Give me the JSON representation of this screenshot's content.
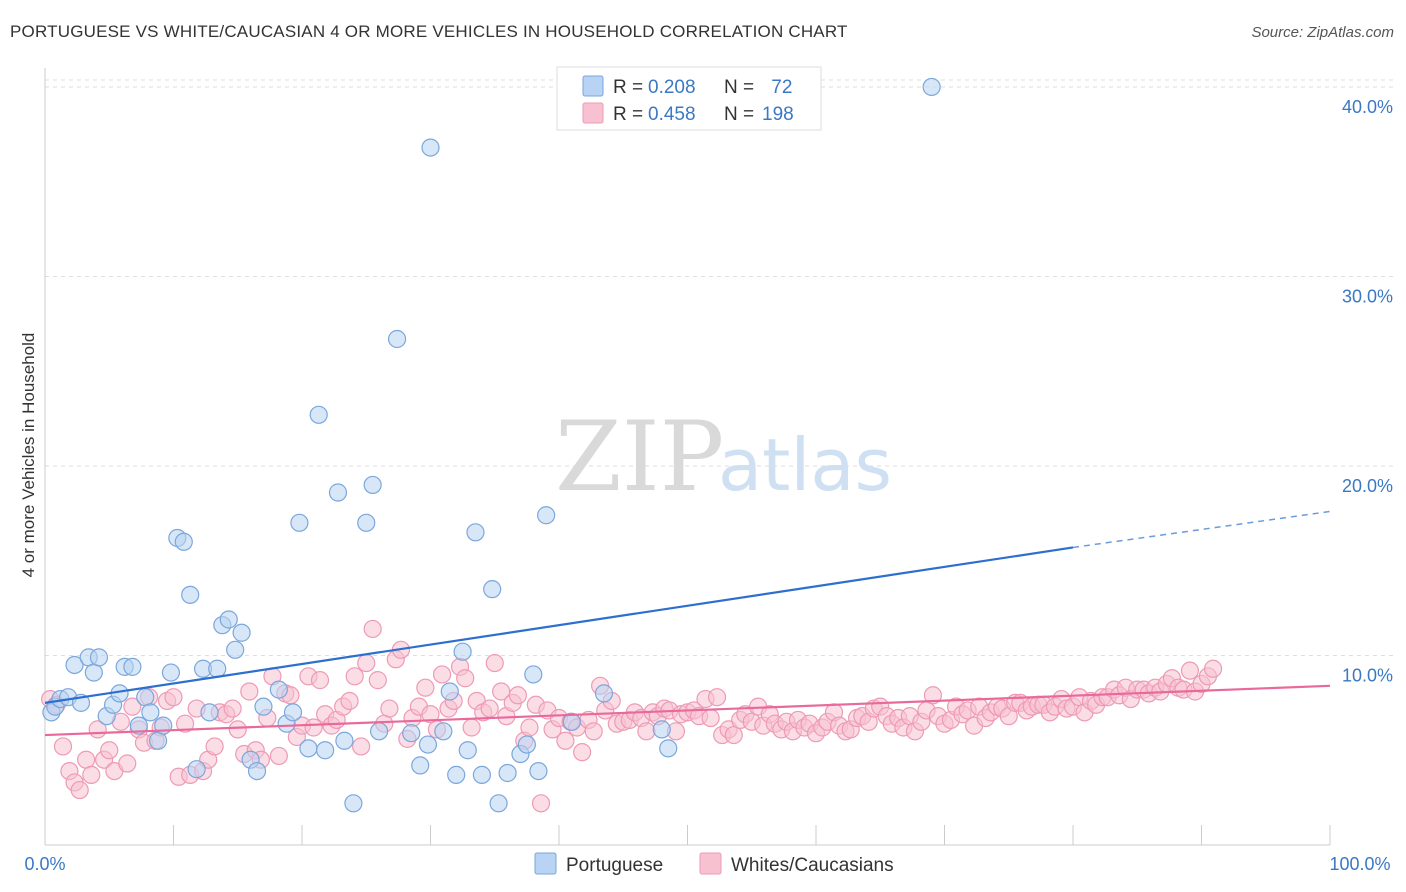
{
  "title": "PORTUGUESE VS WHITE/CAUCASIAN 4 OR MORE VEHICLES IN HOUSEHOLD CORRELATION CHART",
  "source": "Source: ZipAtlas.com",
  "watermark": {
    "zip": "ZIP",
    "atlas": "atlas"
  },
  "colors": {
    "blue_fill": "#b8d3f3",
    "blue_stroke": "#7aa7dc",
    "blue_line": "#2d6fcf",
    "pink_fill": "#f7c1d2",
    "pink_stroke": "#ee9ab5",
    "pink_line": "#e8699a",
    "tick_text": "#3b78c4",
    "grid": "#dddddd"
  },
  "legend": {
    "items": [
      {
        "r_label": "R = ",
        "r_value": "0.208",
        "n_label": "N = ",
        "n_value": " 72"
      },
      {
        "r_label": "R = ",
        "r_value": "0.458",
        "n_label": "N = ",
        "n_value": "198"
      }
    ]
  },
  "chart_data": {
    "type": "scatter",
    "xlabel": "",
    "ylabel": "4 or more Vehicles in Household",
    "xlim": [
      0,
      100
    ],
    "ylim": [
      0,
      41
    ],
    "x_tick_labels": [
      "0.0%",
      "100.0%"
    ],
    "y_ticks": [
      10,
      20,
      30,
      40
    ],
    "y_tick_labels": [
      "10.0%",
      "20.0%",
      "30.0%",
      "40.0%"
    ],
    "grid": true,
    "legend_position": "top-center",
    "series": [
      {
        "name": "Portuguese",
        "color": "#7aa7dc",
        "trend": {
          "x0": 0,
          "y0": 7.5,
          "x1": 80,
          "y1": 15.7,
          "dash_to_x": 100,
          "dash_to_y": 17.6
        },
        "points": [
          [
            0.5,
            7.0
          ],
          [
            0.8,
            7.3
          ],
          [
            1.2,
            7.7
          ],
          [
            1.8,
            7.8
          ],
          [
            2.3,
            9.5
          ],
          [
            2.8,
            7.5
          ],
          [
            3.4,
            9.9
          ],
          [
            3.8,
            9.1
          ],
          [
            4.2,
            9.9
          ],
          [
            4.8,
            6.8
          ],
          [
            5.3,
            7.4
          ],
          [
            5.8,
            8.0
          ],
          [
            6.2,
            9.4
          ],
          [
            6.8,
            9.4
          ],
          [
            7.3,
            6.3
          ],
          [
            7.8,
            7.8
          ],
          [
            8.2,
            7.0
          ],
          [
            8.8,
            5.5
          ],
          [
            9.2,
            6.3
          ],
          [
            9.8,
            9.1
          ],
          [
            10.3,
            16.2
          ],
          [
            10.8,
            16.0
          ],
          [
            11.3,
            13.2
          ],
          [
            11.8,
            4.0
          ],
          [
            12.3,
            9.3
          ],
          [
            12.8,
            7.0
          ],
          [
            13.4,
            9.3
          ],
          [
            13.8,
            11.6
          ],
          [
            14.3,
            11.9
          ],
          [
            14.8,
            10.3
          ],
          [
            15.3,
            11.2
          ],
          [
            16.0,
            4.5
          ],
          [
            16.5,
            3.9
          ],
          [
            17.0,
            7.3
          ],
          [
            18.2,
            8.2
          ],
          [
            18.8,
            6.4
          ],
          [
            19.3,
            7.0
          ],
          [
            19.8,
            17.0
          ],
          [
            20.5,
            5.1
          ],
          [
            21.3,
            22.7
          ],
          [
            21.8,
            5.0
          ],
          [
            22.8,
            18.6
          ],
          [
            23.3,
            5.5
          ],
          [
            24.0,
            2.2
          ],
          [
            25.0,
            17.0
          ],
          [
            25.5,
            19.0
          ],
          [
            26.0,
            6.0
          ],
          [
            27.4,
            26.7
          ],
          [
            28.5,
            5.9
          ],
          [
            29.2,
            4.2
          ],
          [
            29.8,
            5.3
          ],
          [
            30.0,
            36.8
          ],
          [
            31.0,
            6.0
          ],
          [
            31.5,
            8.1
          ],
          [
            32.0,
            3.7
          ],
          [
            32.5,
            10.2
          ],
          [
            32.9,
            5.0
          ],
          [
            33.5,
            16.5
          ],
          [
            34.0,
            3.7
          ],
          [
            34.8,
            13.5
          ],
          [
            35.3,
            2.2
          ],
          [
            36.0,
            3.8
          ],
          [
            37.0,
            4.8
          ],
          [
            37.5,
            5.3
          ],
          [
            38.0,
            9.0
          ],
          [
            38.4,
            3.9
          ],
          [
            39.0,
            17.4
          ],
          [
            41.0,
            6.5
          ],
          [
            43.5,
            8.0
          ],
          [
            48.0,
            6.1
          ],
          [
            48.5,
            5.1
          ],
          [
            69.0,
            40.0
          ]
        ]
      },
      {
        "name": "Whites/Caucasians",
        "color": "#ee9ab5",
        "trend": {
          "x0": 0,
          "y0": 5.8,
          "x1": 100,
          "y1": 8.4
        },
        "points": [
          [
            0.4,
            7.7
          ],
          [
            0.9,
            7.4
          ],
          [
            1.4,
            5.2
          ],
          [
            1.9,
            3.9
          ],
          [
            2.3,
            3.3
          ],
          [
            2.7,
            2.9
          ],
          [
            3.2,
            4.5
          ],
          [
            3.6,
            3.7
          ],
          [
            4.1,
            6.1
          ],
          [
            4.6,
            4.5
          ],
          [
            5.0,
            5.0
          ],
          [
            5.4,
            3.9
          ],
          [
            5.9,
            6.5
          ],
          [
            6.4,
            4.3
          ],
          [
            6.8,
            7.3
          ],
          [
            7.3,
            6.1
          ],
          [
            7.7,
            5.4
          ],
          [
            8.1,
            7.8
          ],
          [
            8.6,
            5.5
          ],
          [
            9.0,
            6.2
          ],
          [
            9.5,
            7.6
          ],
          [
            10.0,
            7.8
          ],
          [
            10.4,
            3.6
          ],
          [
            10.9,
            6.4
          ],
          [
            11.3,
            3.7
          ],
          [
            11.8,
            7.2
          ],
          [
            12.3,
            3.9
          ],
          [
            12.7,
            4.5
          ],
          [
            13.2,
            5.2
          ],
          [
            13.6,
            7.0
          ],
          [
            14.1,
            6.9
          ],
          [
            14.6,
            7.2
          ],
          [
            15.0,
            6.1
          ],
          [
            15.5,
            4.8
          ],
          [
            15.9,
            8.1
          ],
          [
            16.4,
            5.0
          ],
          [
            16.8,
            4.5
          ],
          [
            17.3,
            6.7
          ],
          [
            17.7,
            8.9
          ],
          [
            18.2,
            4.7
          ],
          [
            18.7,
            8.0
          ],
          [
            19.1,
            7.9
          ],
          [
            19.6,
            5.7
          ],
          [
            20.0,
            6.3
          ],
          [
            20.5,
            8.9
          ],
          [
            20.9,
            6.2
          ],
          [
            21.4,
            8.7
          ],
          [
            21.8,
            6.9
          ],
          [
            22.3,
            6.3
          ],
          [
            22.7,
            6.6
          ],
          [
            23.2,
            7.3
          ],
          [
            23.7,
            7.6
          ],
          [
            24.1,
            8.9
          ],
          [
            24.6,
            5.2
          ],
          [
            25.0,
            9.6
          ],
          [
            25.5,
            11.4
          ],
          [
            25.9,
            8.7
          ],
          [
            26.4,
            6.4
          ],
          [
            26.8,
            7.2
          ],
          [
            27.3,
            9.8
          ],
          [
            27.7,
            10.3
          ],
          [
            28.2,
            5.6
          ],
          [
            28.6,
            6.7
          ],
          [
            29.1,
            7.3
          ],
          [
            29.6,
            8.3
          ],
          [
            30.0,
            6.9
          ],
          [
            30.5,
            6.1
          ],
          [
            30.9,
            9.0
          ],
          [
            31.4,
            7.2
          ],
          [
            31.8,
            7.6
          ],
          [
            32.3,
            9.4
          ],
          [
            32.7,
            8.8
          ],
          [
            33.2,
            6.2
          ],
          [
            33.6,
            7.6
          ],
          [
            34.1,
            7.0
          ],
          [
            34.6,
            7.2
          ],
          [
            35.0,
            9.6
          ],
          [
            35.5,
            8.1
          ],
          [
            35.9,
            6.8
          ],
          [
            36.4,
            7.5
          ],
          [
            36.8,
            7.9
          ],
          [
            37.3,
            5.5
          ],
          [
            37.7,
            6.2
          ],
          [
            38.2,
            7.4
          ],
          [
            38.6,
            2.2
          ],
          [
            39.1,
            7.1
          ],
          [
            39.5,
            6.1
          ],
          [
            40.0,
            6.7
          ],
          [
            40.5,
            5.5
          ],
          [
            40.9,
            6.5
          ],
          [
            41.4,
            6.2
          ],
          [
            41.8,
            4.9
          ],
          [
            42.3,
            6.6
          ],
          [
            42.7,
            6.0
          ],
          [
            43.2,
            8.4
          ],
          [
            43.6,
            7.1
          ],
          [
            44.1,
            7.6
          ],
          [
            44.5,
            6.4
          ],
          [
            45.0,
            6.5
          ],
          [
            45.5,
            6.6
          ],
          [
            45.9,
            7.0
          ],
          [
            46.4,
            6.7
          ],
          [
            46.8,
            6.0
          ],
          [
            47.3,
            7.0
          ],
          [
            47.7,
            6.8
          ],
          [
            48.2,
            7.2
          ],
          [
            48.6,
            7.1
          ],
          [
            49.1,
            6.0
          ],
          [
            49.5,
            6.9
          ],
          [
            50.0,
            7.0
          ],
          [
            50.5,
            7.1
          ],
          [
            50.9,
            6.8
          ],
          [
            51.4,
            7.7
          ],
          [
            51.8,
            6.7
          ],
          [
            52.3,
            7.8
          ],
          [
            52.7,
            5.8
          ],
          [
            53.2,
            6.1
          ],
          [
            53.6,
            5.8
          ],
          [
            54.1,
            6.6
          ],
          [
            54.5,
            6.9
          ],
          [
            55.0,
            6.5
          ],
          [
            55.5,
            7.3
          ],
          [
            55.9,
            6.3
          ],
          [
            56.4,
            6.9
          ],
          [
            56.8,
            6.4
          ],
          [
            57.3,
            6.1
          ],
          [
            57.7,
            6.5
          ],
          [
            58.2,
            6.0
          ],
          [
            58.6,
            6.6
          ],
          [
            59.1,
            6.2
          ],
          [
            59.5,
            6.4
          ],
          [
            60.0,
            5.9
          ],
          [
            60.5,
            6.2
          ],
          [
            60.9,
            6.5
          ],
          [
            61.4,
            7.0
          ],
          [
            61.8,
            6.3
          ],
          [
            62.3,
            6.0
          ],
          [
            62.7,
            6.1
          ],
          [
            63.2,
            6.7
          ],
          [
            63.6,
            6.8
          ],
          [
            64.1,
            6.5
          ],
          [
            64.5,
            7.2
          ],
          [
            65.0,
            7.3
          ],
          [
            65.5,
            6.8
          ],
          [
            65.9,
            6.4
          ],
          [
            66.4,
            6.7
          ],
          [
            66.8,
            6.2
          ],
          [
            67.3,
            6.8
          ],
          [
            67.7,
            6.0
          ],
          [
            68.2,
            6.5
          ],
          [
            68.6,
            7.1
          ],
          [
            69.1,
            7.9
          ],
          [
            69.5,
            6.8
          ],
          [
            70.0,
            6.4
          ],
          [
            70.5,
            6.6
          ],
          [
            70.9,
            7.3
          ],
          [
            71.4,
            6.9
          ],
          [
            71.8,
            7.1
          ],
          [
            72.3,
            6.3
          ],
          [
            72.7,
            7.3
          ],
          [
            73.2,
            6.7
          ],
          [
            73.6,
            7.0
          ],
          [
            74.1,
            7.3
          ],
          [
            74.5,
            7.2
          ],
          [
            75.0,
            6.8
          ],
          [
            75.5,
            7.5
          ],
          [
            75.9,
            7.5
          ],
          [
            76.4,
            7.1
          ],
          [
            76.8,
            7.3
          ],
          [
            77.3,
            7.4
          ],
          [
            77.7,
            7.4
          ],
          [
            78.2,
            7.0
          ],
          [
            78.6,
            7.3
          ],
          [
            79.1,
            7.7
          ],
          [
            79.5,
            7.2
          ],
          [
            80.0,
            7.3
          ],
          [
            80.5,
            7.8
          ],
          [
            80.9,
            7.0
          ],
          [
            81.4,
            7.6
          ],
          [
            81.8,
            7.4
          ],
          [
            82.3,
            7.8
          ],
          [
            82.7,
            7.8
          ],
          [
            83.2,
            8.2
          ],
          [
            83.6,
            7.9
          ],
          [
            84.1,
            8.3
          ],
          [
            84.5,
            7.7
          ],
          [
            85.0,
            8.2
          ],
          [
            85.5,
            8.2
          ],
          [
            85.9,
            8.0
          ],
          [
            86.4,
            8.3
          ],
          [
            86.8,
            8.1
          ],
          [
            87.3,
            8.5
          ],
          [
            87.7,
            8.8
          ],
          [
            88.2,
            8.3
          ],
          [
            88.6,
            8.2
          ],
          [
            89.1,
            9.2
          ],
          [
            89.5,
            8.1
          ],
          [
            90.0,
            8.5
          ],
          [
            90.5,
            8.9
          ],
          [
            90.9,
            9.3
          ]
        ]
      }
    ]
  },
  "bottom_legend": {
    "items": [
      "Portuguese",
      "Whites/Caucasians"
    ]
  }
}
